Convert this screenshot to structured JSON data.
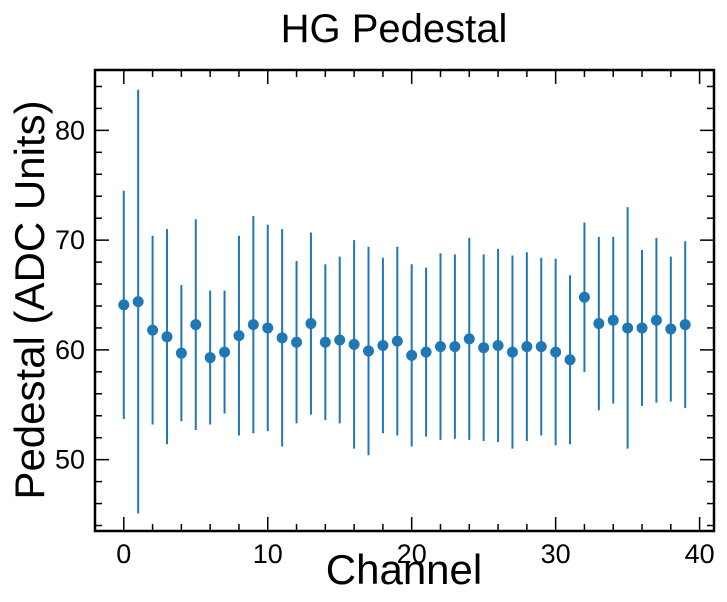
{
  "chart_data": {
    "type": "scatter",
    "title": "HG Pedestal",
    "xlabel": "Channel",
    "ylabel": "Pedestal (ADC Units)",
    "xlim": [
      -2,
      41
    ],
    "ylim": [
      43.5,
      85.5
    ],
    "xticks": [
      0,
      10,
      20,
      30,
      40
    ],
    "yticks": [
      50,
      60,
      70,
      80
    ],
    "grid": false,
    "legend": "none",
    "marker_color": "#1f77b4",
    "series": [
      {
        "x": [
          0,
          1,
          2,
          3,
          4,
          5,
          6,
          7,
          8,
          9,
          10,
          11,
          12,
          13,
          14,
          15,
          16,
          17,
          18,
          19,
          20,
          21,
          22,
          23,
          24,
          25,
          26,
          27,
          28,
          29,
          30,
          31,
          32,
          33,
          34,
          35,
          36,
          37,
          38,
          39
        ],
        "y": [
          64.1,
          64.4,
          61.8,
          61.2,
          59.7,
          62.3,
          59.3,
          59.8,
          61.3,
          62.3,
          62.0,
          61.1,
          60.7,
          62.4,
          60.7,
          60.9,
          60.5,
          59.9,
          60.4,
          60.8,
          59.5,
          59.8,
          60.3,
          60.3,
          61.0,
          60.2,
          60.4,
          59.8,
          60.3,
          60.3,
          59.8,
          59.1,
          64.8,
          62.4,
          62.7,
          62.0,
          62.0,
          62.7,
          61.9,
          62.3
        ],
        "err": [
          10.4,
          19.3,
          8.6,
          9.8,
          6.2,
          9.6,
          6.1,
          5.6,
          9.1,
          9.9,
          9.4,
          9.9,
          7.4,
          8.3,
          7.1,
          7.6,
          9.5,
          9.5,
          8.0,
          8.6,
          8.3,
          7.7,
          8.5,
          8.4,
          9.2,
          8.5,
          8.8,
          8.8,
          8.6,
          8.1,
          8.5,
          7.7,
          6.8,
          7.9,
          7.6,
          11.0,
          7.1,
          7.5,
          6.6,
          7.6
        ]
      }
    ]
  }
}
